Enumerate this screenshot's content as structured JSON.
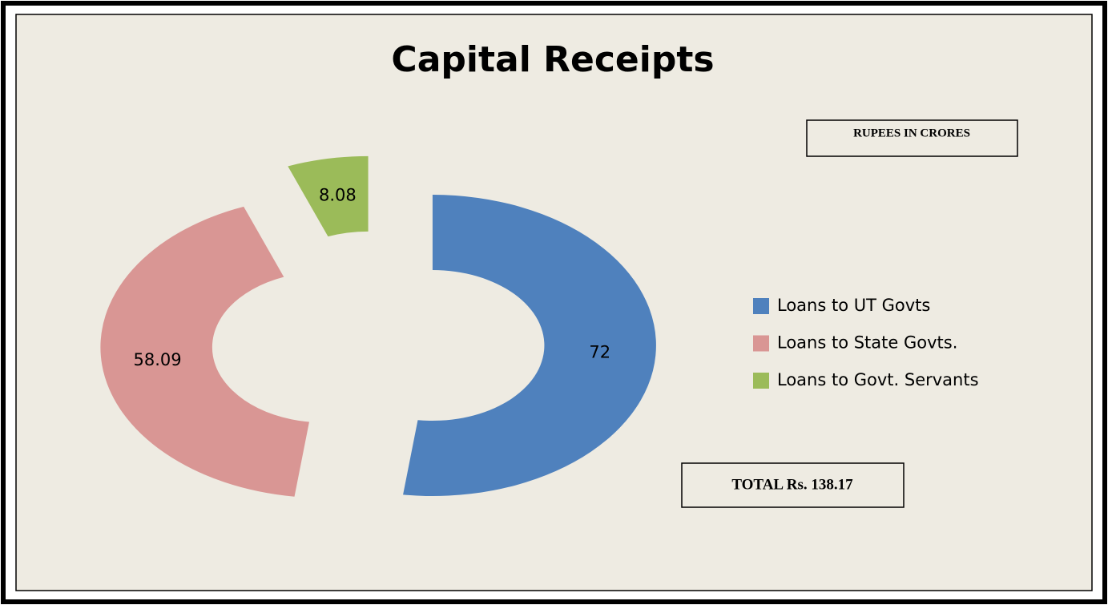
{
  "chart_data": {
    "type": "donut",
    "title": "Capital Receipts",
    "categories": [
      "Loans to UT Govts",
      "Loans to State Govts.",
      "Loans to Govt. Servants"
    ],
    "values": [
      72,
      58.09,
      8.08
    ],
    "colors": [
      "#4f81bd",
      "#d99694",
      "#9bbb59"
    ],
    "annotations": [
      "RUPEES IN CRORES",
      "TOTAL Rs. 138.17"
    ]
  }
}
